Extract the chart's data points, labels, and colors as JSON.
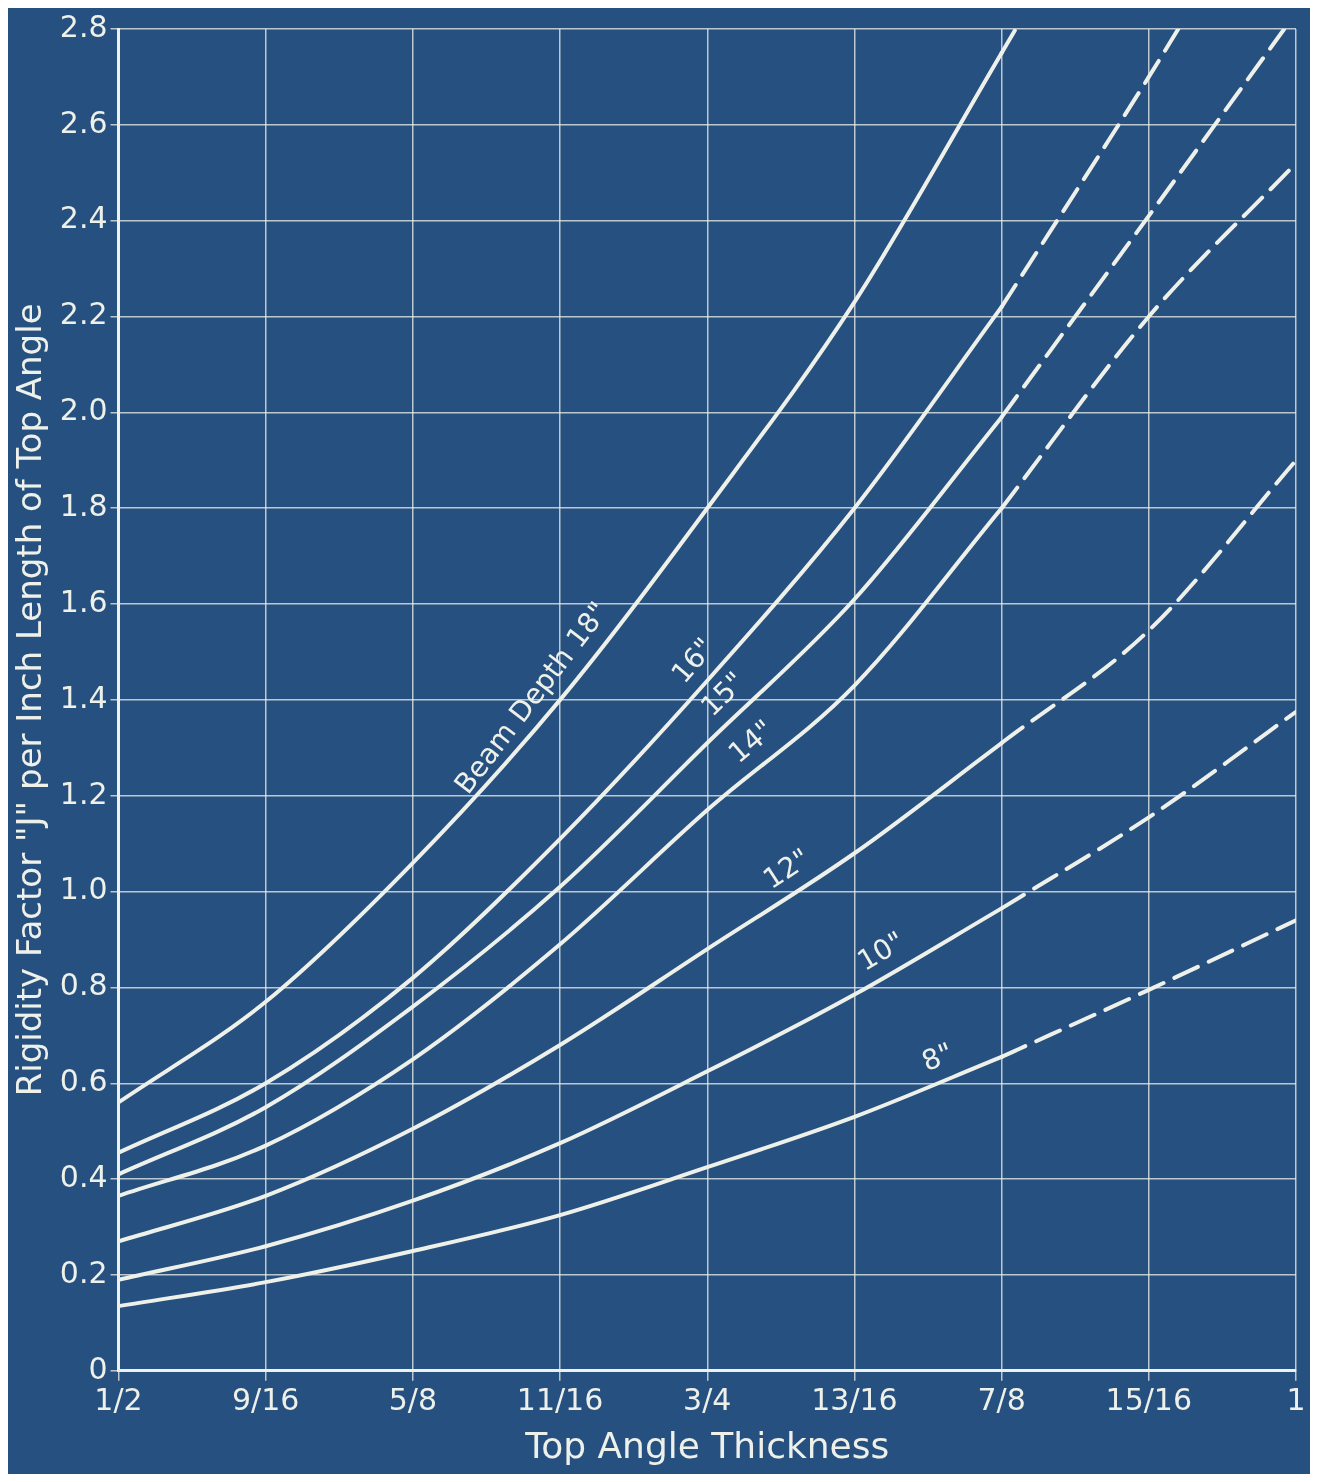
{
  "chart_data": {
    "type": "line",
    "xlabel": "Top Angle Thickness",
    "ylabel": "Rigidity Factor \"J\" per Inch Length of Top Angle",
    "xlim": [
      0.5,
      1
    ],
    "xticks": [
      {
        "value": 0.5,
        "label": "1/2"
      },
      {
        "value": 0.5625,
        "label": "9/16"
      },
      {
        "value": 0.625,
        "label": "5/8"
      },
      {
        "value": 0.6875,
        "label": "11/16"
      },
      {
        "value": 0.75,
        "label": "3/4"
      },
      {
        "value": 0.8125,
        "label": "13/16"
      },
      {
        "value": 0.875,
        "label": "7/8"
      },
      {
        "value": 0.9375,
        "label": "15/16"
      },
      1
    ],
    "ylim": [
      0,
      2.8
    ],
    "yticks": [
      0,
      0.2,
      0.4,
      0.6,
      0.8,
      {
        "value": 1,
        "label": "1.0"
      },
      1.2,
      1.4,
      1.6,
      1.8,
      {
        "value": 2,
        "label": "2.0"
      },
      2.2,
      2.4,
      2.6,
      2.8
    ],
    "grid": true,
    "legend": false,
    "marker": "none",
    "series": [
      {
        "name": "Beam Depth 18\"",
        "color": "#eef0ea",
        "line_style": "solid",
        "x": [
          0.5,
          0.5625,
          0.625,
          0.6875,
          0.75,
          0.8125,
          0.875
        ],
        "values": [
          0.56,
          0.77,
          1.06,
          1.4,
          1.8,
          2.23,
          2.75
        ]
      },
      {
        "name": "16\"",
        "color": "#eef0ea",
        "line_style": "solid",
        "x": [
          0.5,
          0.5625,
          0.625,
          0.6875,
          0.75,
          0.8125,
          0.875
        ],
        "values": [
          0.455,
          0.6,
          0.82,
          1.11,
          1.44,
          1.8,
          2.22
        ]
      },
      {
        "name": "15\"",
        "color": "#eef0ea",
        "line_style": "solid",
        "x": [
          0.5,
          0.5625,
          0.625,
          0.6875,
          0.75,
          0.8125,
          0.875
        ],
        "values": [
          0.41,
          0.55,
          0.76,
          1.01,
          1.31,
          1.61,
          1.99
        ]
      },
      {
        "name": "14\"",
        "color": "#eef0ea",
        "line_style": "solid",
        "x": [
          0.5,
          0.5625,
          0.625,
          0.6875,
          0.75,
          0.8125,
          0.875
        ],
        "values": [
          0.365,
          0.47,
          0.65,
          0.89,
          1.17,
          1.43,
          1.8
        ]
      },
      {
        "name": "12\"",
        "color": "#eef0ea",
        "line_style": "solid",
        "x": [
          0.5,
          0.5625,
          0.625,
          0.6875,
          0.75,
          0.8125,
          0.875
        ],
        "values": [
          0.27,
          0.365,
          0.505,
          0.68,
          0.88,
          1.08,
          1.31
        ]
      },
      {
        "name": "10\"",
        "color": "#eef0ea",
        "line_style": "solid",
        "x": [
          0.5,
          0.5625,
          0.625,
          0.6875,
          0.75,
          0.8125,
          0.875
        ],
        "values": [
          0.19,
          0.26,
          0.355,
          0.475,
          0.625,
          0.785,
          0.965
        ]
      },
      {
        "name": "8\"",
        "color": "#eef0ea",
        "line_style": "solid",
        "x": [
          0.5,
          0.5625,
          0.625,
          0.6875,
          0.75,
          0.8125,
          0.875
        ],
        "values": [
          0.135,
          0.185,
          0.25,
          0.325,
          0.425,
          0.53,
          0.655
        ]
      },
      {
        "color": "#eef0ea",
        "line_style": "dashed",
        "x": [
          0.875,
          0.881
        ],
        "values": [
          2.75,
          2.8
        ]
      },
      {
        "color": "#eef0ea",
        "line_style": "dashed",
        "x": [
          0.875,
          0.9375,
          0.95
        ],
        "values": [
          2.22,
          2.7,
          2.8
        ]
      },
      {
        "color": "#eef0ea",
        "line_style": "dashed",
        "x": [
          0.875,
          0.9375,
          0.995
        ],
        "values": [
          1.99,
          2.41,
          2.8
        ]
      },
      {
        "color": "#eef0ea",
        "line_style": "dashed",
        "x": [
          0.875,
          0.9375,
          1
        ],
        "values": [
          1.8,
          2.2,
          2.52
        ]
      },
      {
        "color": "#eef0ea",
        "line_style": "dashed",
        "x": [
          0.875,
          0.9375,
          1
        ],
        "values": [
          1.31,
          1.545,
          1.9
        ]
      },
      {
        "color": "#eef0ea",
        "line_style": "dashed",
        "x": [
          0.875,
          0.9375,
          1
        ],
        "values": [
          0.965,
          1.155,
          1.375
        ]
      },
      {
        "color": "#eef0ea",
        "line_style": "dashed",
        "x": [
          0.875,
          0.9375,
          1
        ],
        "values": [
          0.655,
          0.795,
          0.94
        ]
      }
    ]
  }
}
